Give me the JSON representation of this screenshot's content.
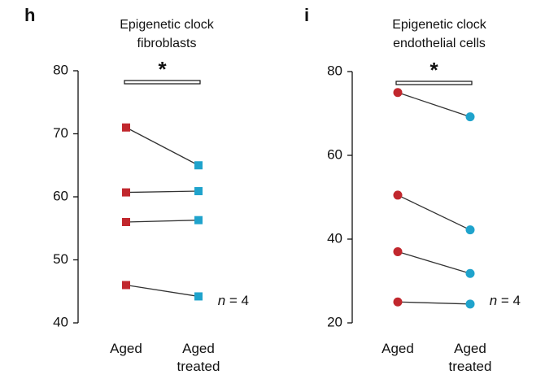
{
  "chart_data": [
    {
      "type": "paired",
      "panel": "h",
      "title": "Epigenetic clock\nfibroblasts",
      "categories": [
        "Aged",
        "Aged\ntreated"
      ],
      "point_colors": [
        "#c1272d",
        "#1fa3cc"
      ],
      "line_color": "#333333",
      "marker": "square",
      "ylim": [
        40,
        80
      ],
      "yticks": [
        40,
        50,
        60,
        70,
        80
      ],
      "significance_label": "*",
      "annotation": "n = 4",
      "series": [
        {
          "values": [
            71,
            65
          ]
        },
        {
          "values": [
            60.7,
            60.9
          ]
        },
        {
          "values": [
            56,
            56.3
          ]
        },
        {
          "values": [
            46,
            44.2
          ]
        }
      ]
    },
    {
      "type": "paired",
      "panel": "i",
      "title": "Epigenetic clock\nendothelial cells",
      "categories": [
        "Aged",
        "Aged\ntreated"
      ],
      "point_colors": [
        "#c1272d",
        "#1fa3cc"
      ],
      "line_color": "#333333",
      "marker": "circle",
      "ylim": [
        20,
        80
      ],
      "yticks": [
        20,
        40,
        60,
        80
      ],
      "significance_label": "*",
      "annotation": "n = 4",
      "series": [
        {
          "values": [
            75,
            69.2
          ]
        },
        {
          "values": [
            50.5,
            42.2
          ]
        },
        {
          "values": [
            37,
            31.8
          ]
        },
        {
          "values": [
            25,
            24.5
          ]
        }
      ]
    }
  ]
}
